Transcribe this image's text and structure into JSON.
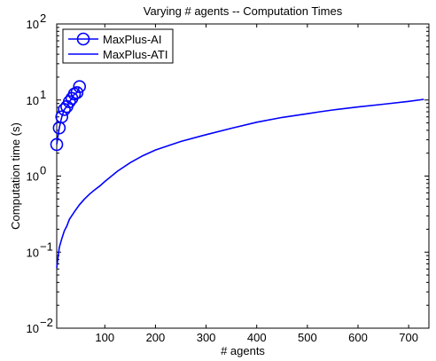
{
  "chart_data": {
    "type": "line",
    "title": "Varying # agents -- Computation Times",
    "xlabel": "# agents",
    "ylabel": "Computation time (s)",
    "xlim": [
      5,
      740
    ],
    "ylim": [
      0.01,
      100
    ],
    "yscale": "log",
    "xticks": [
      100,
      200,
      300,
      400,
      500,
      600,
      700
    ],
    "yticks": [
      {
        "value": 0.01,
        "base": "10",
        "exp": "−2"
      },
      {
        "value": 0.1,
        "base": "10",
        "exp": "−1"
      },
      {
        "value": 1,
        "base": "10",
        "exp": "0"
      },
      {
        "value": 10,
        "base": "10",
        "exp": "1"
      },
      {
        "value": 100,
        "base": "10",
        "exp": "2"
      }
    ],
    "grid": false,
    "legend_position": "top-left",
    "series": [
      {
        "name": "MaxPlus-AI",
        "color": "#0000ff",
        "marker": "circle",
        "line": true,
        "x": [
          5,
          10,
          15,
          20,
          25,
          30,
          35,
          40,
          45,
          50
        ],
        "y": [
          2.6,
          4.3,
          6.0,
          7.5,
          8.2,
          9.5,
          10.5,
          12.0,
          12.5,
          15.0
        ]
      },
      {
        "name": "MaxPlus-ATI",
        "color": "#0000ff",
        "marker": "none",
        "line": true,
        "x": [
          5,
          10,
          15,
          20,
          25,
          30,
          40,
          50,
          60,
          70,
          80,
          90,
          100,
          125,
          150,
          175,
          200,
          250,
          300,
          350,
          400,
          450,
          500,
          525,
          550,
          600,
          650,
          700,
          730
        ],
        "y": [
          0.062,
          0.115,
          0.15,
          0.19,
          0.22,
          0.27,
          0.34,
          0.42,
          0.5,
          0.58,
          0.66,
          0.74,
          0.85,
          1.16,
          1.5,
          1.85,
          2.2,
          2.85,
          3.5,
          4.25,
          5.1,
          5.9,
          6.6,
          7.0,
          7.4,
          8.1,
          8.8,
          9.6,
          10.2
        ]
      }
    ]
  }
}
